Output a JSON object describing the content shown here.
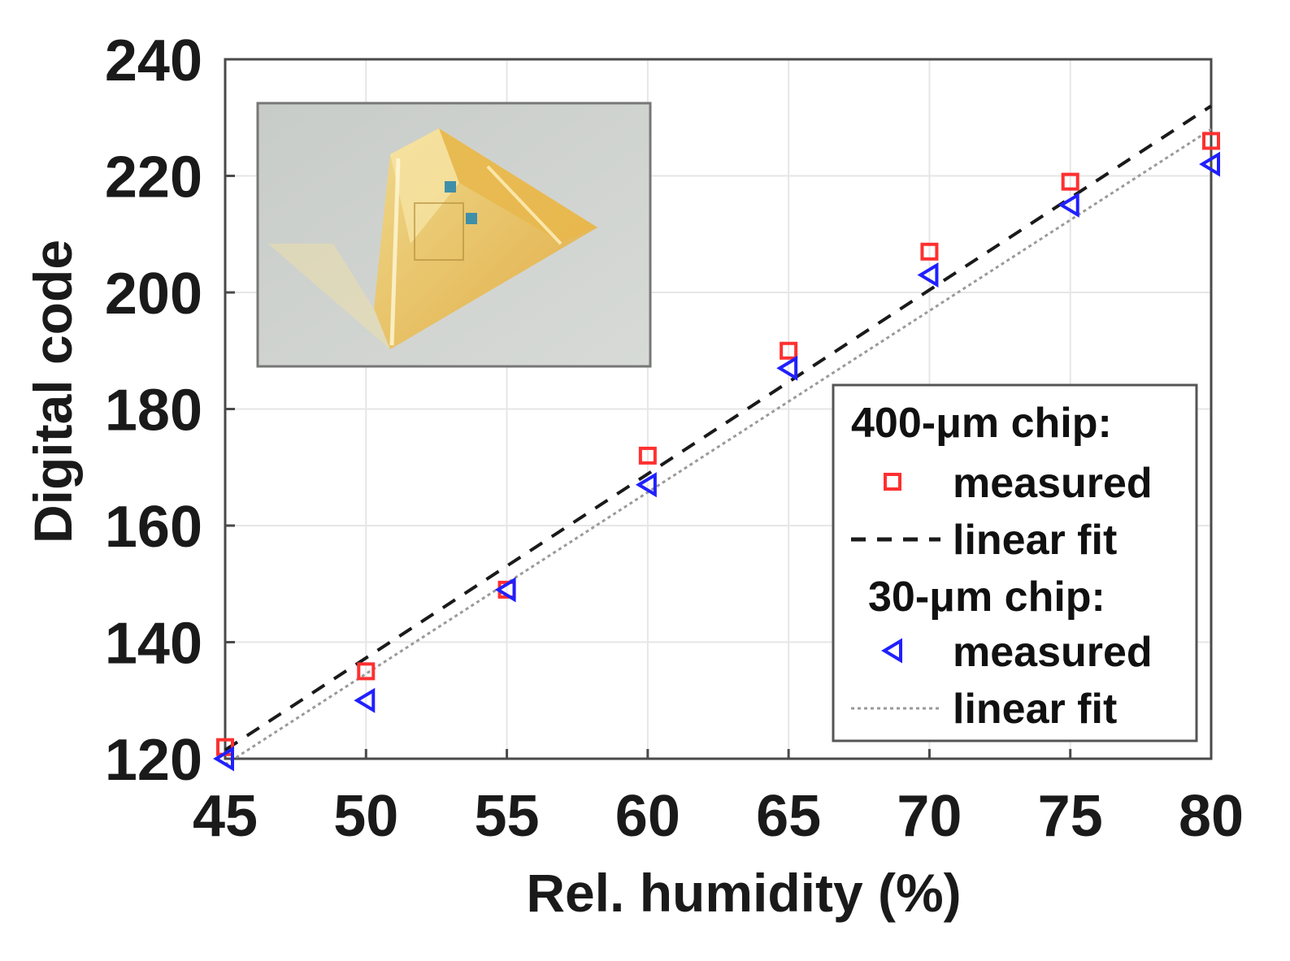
{
  "chart_data": {
    "type": "scatter",
    "title": "",
    "xlabel": "Rel. humidity (%)",
    "ylabel": "Digital code",
    "xlim": [
      45,
      80
    ],
    "ylim": [
      120,
      240
    ],
    "xticks": [
      "45",
      "50",
      "55",
      "60",
      "65",
      "70",
      "75",
      "80"
    ],
    "yticks": [
      "120",
      "140",
      "160",
      "180",
      "200",
      "220",
      "240"
    ],
    "grid": true,
    "legend_position": "bottom-right",
    "legend": {
      "group1_title": "400-μm chip:",
      "group2_title": "30-μm chip:",
      "measured_label": "measured",
      "fit_label": "linear fit"
    },
    "inset_image": "photo of folded yellow flexible sensor chip",
    "series": [
      {
        "group": "400-μm chip:",
        "name": "measured",
        "kind": "markers",
        "marker": "square",
        "color": "#ff3030",
        "x": [
          45,
          50,
          55,
          60,
          65,
          70,
          75,
          80
        ],
        "y": [
          122,
          135,
          149,
          172,
          190,
          207,
          219,
          226
        ]
      },
      {
        "group": "400-μm chip:",
        "name": "linear fit",
        "kind": "line",
        "style": "dashed",
        "color": "#1a1a1a",
        "x": [
          45,
          80
        ],
        "y": [
          121.5,
          232
        ]
      },
      {
        "group": "30-μm chip:",
        "name": "measured",
        "kind": "markers",
        "marker": "triangle-left",
        "color": "#2020ff",
        "x": [
          45,
          50,
          55,
          60,
          65,
          70,
          75,
          80
        ],
        "y": [
          120,
          130,
          149,
          167,
          187,
          203,
          215,
          222
        ]
      },
      {
        "group": "30-μm chip:",
        "name": "linear fit",
        "kind": "line",
        "style": "dotted",
        "color": "#9a9a9a",
        "x": [
          45,
          80
        ],
        "y": [
          119,
          228
        ]
      }
    ]
  }
}
